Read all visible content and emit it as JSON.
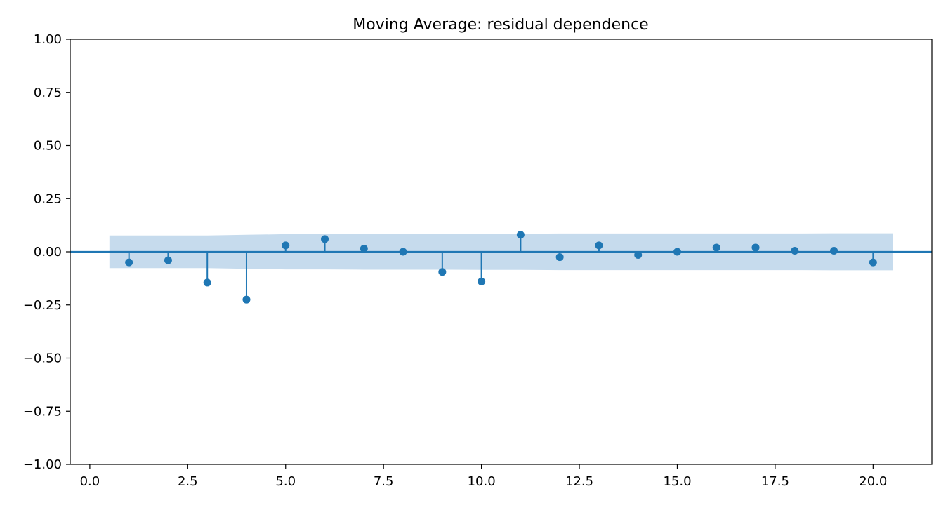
{
  "chart_data": {
    "type": "stem",
    "title": "Moving Average: residual dependence",
    "xlabel": "",
    "ylabel": "",
    "xlim": [
      -0.5,
      21.5
    ],
    "ylim": [
      -1.0,
      1.0
    ],
    "x_ticks": [
      0.0,
      2.5,
      5.0,
      7.5,
      10.0,
      12.5,
      15.0,
      17.5,
      20.0
    ],
    "x_tick_labels": [
      "0.0",
      "2.5",
      "5.0",
      "7.5",
      "10.0",
      "12.5",
      "15.0",
      "17.5",
      "20.0"
    ],
    "y_ticks": [
      1.0,
      0.75,
      0.5,
      0.25,
      0.0,
      -0.25,
      -0.5,
      -0.75,
      -1.0
    ],
    "y_tick_labels": [
      "1.00",
      "0.75",
      "0.50",
      "0.25",
      "0.00",
      "−0.25",
      "−0.50",
      "−0.75",
      "−1.00"
    ],
    "grid": false,
    "x": [
      1,
      2,
      3,
      4,
      5,
      6,
      7,
      8,
      9,
      10,
      11,
      12,
      13,
      14,
      15,
      16,
      17,
      18,
      19,
      20
    ],
    "values": [
      -0.05,
      -0.04,
      -0.145,
      -0.225,
      0.03,
      0.06,
      0.015,
      0.0,
      -0.095,
      -0.14,
      0.08,
      -0.025,
      0.03,
      -0.015,
      0.0,
      0.02,
      0.02,
      0.005,
      0.005,
      -0.05
    ],
    "confidence_band": {
      "x": [
        0.5,
        1,
        2,
        3,
        4,
        5,
        6,
        7,
        8,
        9,
        10,
        11,
        12,
        13,
        14,
        15,
        16,
        17,
        18,
        19,
        20,
        20.5
      ],
      "upper": [
        0.077,
        0.077,
        0.077,
        0.077,
        0.08,
        0.083,
        0.083,
        0.084,
        0.084,
        0.084,
        0.085,
        0.085,
        0.086,
        0.086,
        0.086,
        0.086,
        0.086,
        0.086,
        0.086,
        0.087,
        0.087,
        0.087
      ]
    },
    "colors": {
      "series": "#1f77b4",
      "band": "#c6dbed",
      "axis": "#000000"
    }
  }
}
